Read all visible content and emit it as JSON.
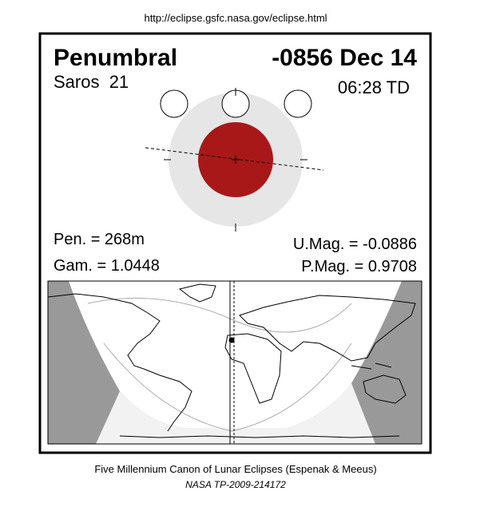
{
  "url": "http://eclipse.gsfc.nasa.gov/eclipse.html",
  "eclipse": {
    "type": "Penumbral",
    "date": "-0856 Dec 14",
    "saros": "Saros  21",
    "time": "06:28 TD",
    "pen": "Pen. = 268m",
    "gam": "Gam. = 1.0448",
    "umag": "U.Mag. = -0.0886",
    "pmag": "P.Mag. = 0.9708"
  },
  "footer": {
    "canon": "Five Millennium Canon of Lunar Eclipses (Espenak & Meeus)",
    "report": "NASA TP-2009-214172"
  }
}
